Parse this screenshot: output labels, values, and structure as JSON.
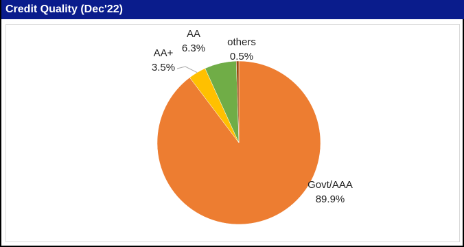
{
  "header": {
    "title": "Credit Quality (Dec'22)"
  },
  "colors": {
    "header_bg": "#0a1c8c",
    "header_text": "#ffffff",
    "leader_line": "#a6a6a6"
  },
  "chart_data": {
    "type": "pie",
    "title": "",
    "slices": [
      {
        "label": "Govt/AAA",
        "value_label": "89.9%",
        "value": 89.9,
        "color": "#ed7d31"
      },
      {
        "label": "AA+",
        "value_label": "3.5%",
        "value": 3.5,
        "color": "#ffc000"
      },
      {
        "label": "AA",
        "value_label": "6.3%",
        "value": 6.3,
        "color": "#70ad47"
      },
      {
        "label": "others",
        "value_label": "0.5%",
        "value": 0.5,
        "color": "#9e480e"
      }
    ],
    "start_angle_deg": 0,
    "direction": "clockwise",
    "legend": "none"
  }
}
